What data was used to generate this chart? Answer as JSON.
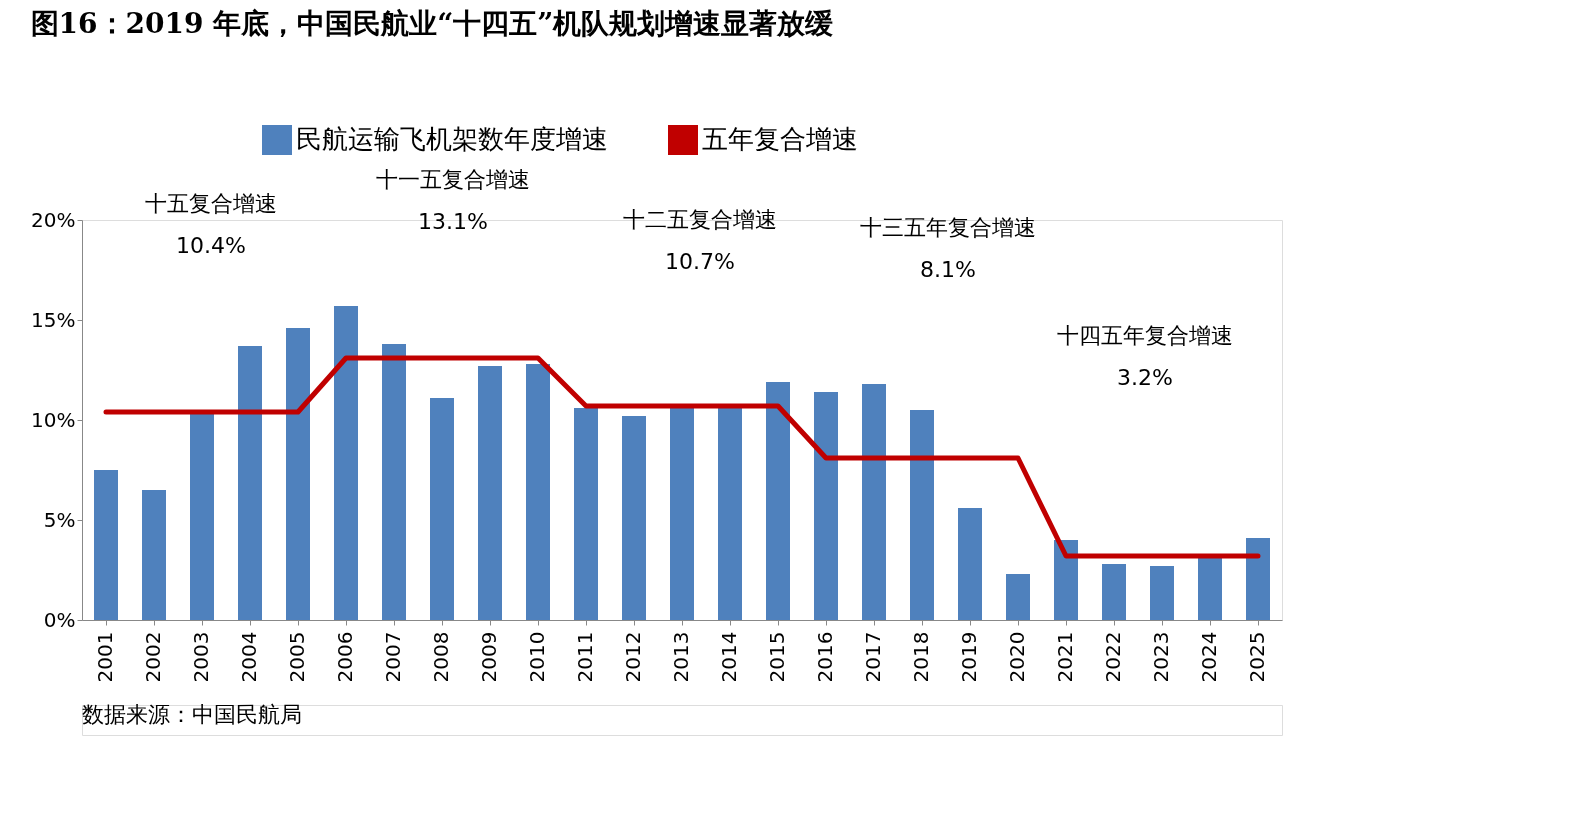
{
  "chart_data": {
    "type": "bar",
    "title": "图16：2019 年底，中国民航业“十四五”机队规划增速显著放缓",
    "categories": [
      "2001",
      "2002",
      "2003",
      "2004",
      "2005",
      "2006",
      "2007",
      "2008",
      "2009",
      "2010",
      "2011",
      "2012",
      "2013",
      "2014",
      "2015",
      "2016",
      "2017",
      "2018",
      "2019",
      "2020",
      "2021",
      "2022",
      "2023",
      "2024",
      "2025"
    ],
    "series": [
      {
        "name": "民航运输飞机架数年度增速",
        "color": "#4f81bd",
        "values": [
          7.5,
          6.5,
          10.3,
          13.7,
          14.6,
          15.7,
          13.8,
          11.1,
          12.7,
          12.8,
          10.6,
          10.2,
          10.7,
          10.7,
          11.9,
          11.4,
          11.8,
          10.5,
          5.6,
          2.3,
          4.0,
          2.8,
          2.7,
          3.2,
          4.1
        ]
      },
      {
        "name": "五年复合增速",
        "type": "line",
        "color": "#c00000",
        "values": [
          10.4,
          10.4,
          10.4,
          10.4,
          10.4,
          13.1,
          13.1,
          13.1,
          13.1,
          13.1,
          10.7,
          10.7,
          10.7,
          10.7,
          10.7,
          8.1,
          8.1,
          8.1,
          8.1,
          8.1,
          3.2,
          3.2,
          3.2,
          3.2,
          3.2
        ]
      }
    ],
    "ylim": [
      0,
      20
    ],
    "yticks": [
      {
        "value": 0,
        "label": "0%"
      },
      {
        "value": 5,
        "label": "5%"
      },
      {
        "value": 10,
        "label": "10%"
      },
      {
        "value": 15,
        "label": "15%"
      },
      {
        "value": 20,
        "label": "20%"
      }
    ],
    "grid": false,
    "legend": "top",
    "annotations": [
      "十五复合增速\n10.4%",
      "十一五复合增速\n13.1%",
      "十二五复合增速\n10.7%",
      "十三五年复合增速\n8.1%",
      "十四五年复合增速\n3.2%",
      "数据来源：中国民航局"
    ]
  }
}
